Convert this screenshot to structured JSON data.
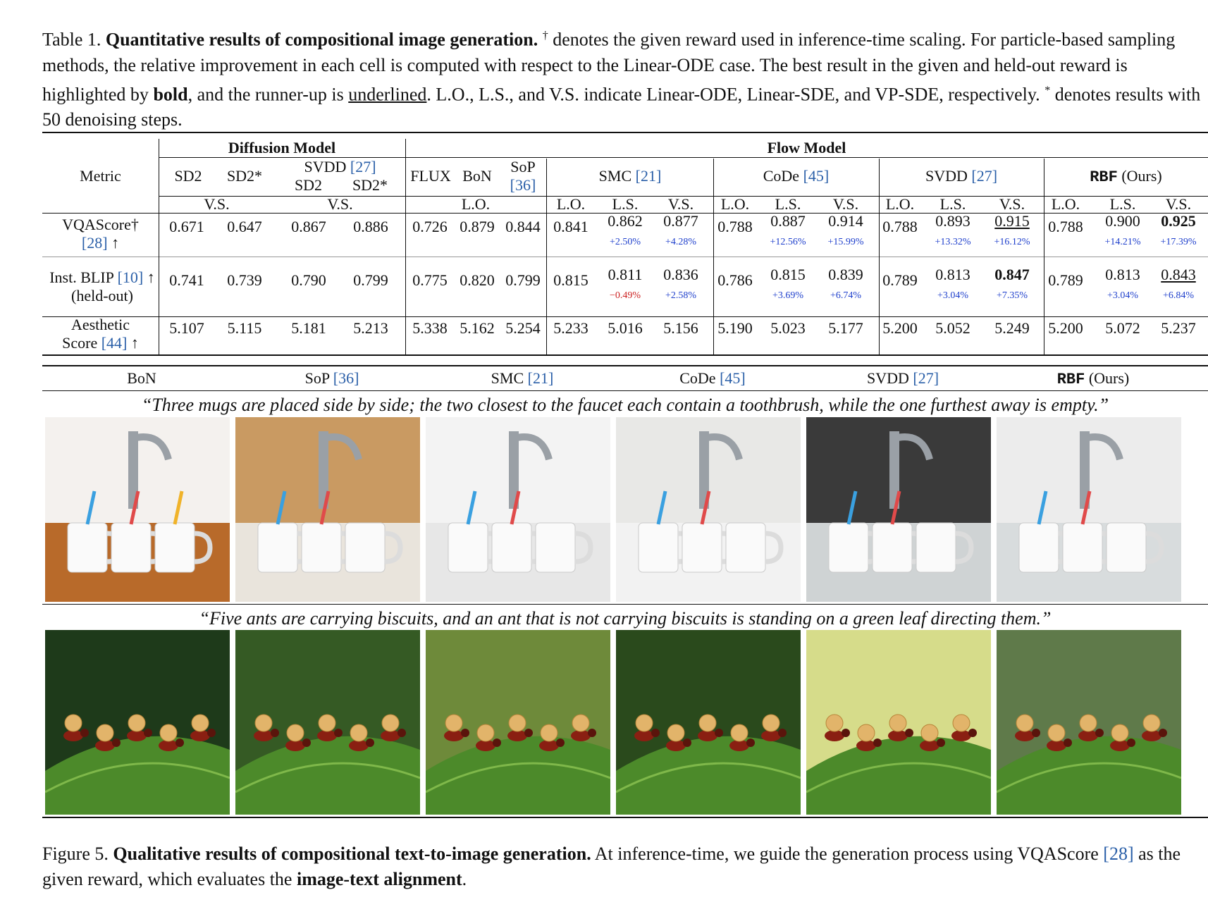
{
  "table_caption": {
    "label": "Table 1.",
    "title": "Quantitative results of compositional image generation.",
    "body_1": "denotes the given reward used in inference-time scaling. For particle-based sampling methods, the relative improvement in each cell is computed with respect to the Linear-ODE case. The best result in the given and held-out reward is highlighted by",
    "bold_word": "bold",
    "body_2": ", and the runner-up is",
    "underlined_word": "underlined",
    "body_3": ". L.O., L.S., and V.S. indicate Linear-ODE, Linear-SDE, and VP-SDE, respectively.",
    "body_4": "denotes results with 50 denoising steps."
  },
  "table": {
    "metric_header": "Metric",
    "group_diffusion": "Diffusion Model",
    "group_flow": "Flow Model",
    "sd2": "SD2",
    "sd2_star": "SD2*",
    "svdd": "SVDD",
    "cite_27": "[27]",
    "flux": "FLUX",
    "bon": "BoN",
    "sop": "SoP",
    "cite_36": "[36]",
    "smc": "SMC",
    "cite_21": "[21]",
    "code": "CoDe",
    "cite_45": "[45]",
    "rbf": "RBF",
    "ours": "(Ours)",
    "vs": "V.S.",
    "lo": "L.O.",
    "ls": "L.S.",
    "rows": [
      {
        "metric_line1": "VQAScore†",
        "metric_line2_cite": "[28]",
        "metric_line2_rest": " ↑",
        "values": [
          "0.671",
          "0.647",
          "0.867",
          "0.886",
          "0.726",
          "0.879",
          "0.844",
          "0.841",
          "0.862",
          "0.877",
          "0.788",
          "0.887",
          "0.914",
          "0.788",
          "0.893",
          "0.915",
          "0.788",
          "0.900",
          "0.925"
        ],
        "improvements": [
          "",
          "",
          "",
          "",
          "",
          "",
          "",
          "",
          "+2.50%",
          "+4.28%",
          "",
          "+12.56%",
          "+15.99%",
          "",
          "+13.32%",
          "+16.12%",
          "",
          "+14.21%",
          "+17.39%"
        ]
      },
      {
        "metric_line1_pre": "Inst. BLIP ",
        "metric_line1_cite": "[10]",
        "metric_line1_post": " ↑",
        "metric_line2": "(held-out)",
        "values": [
          "0.741",
          "0.739",
          "0.790",
          "0.799",
          "0.775",
          "0.820",
          "0.799",
          "0.815",
          "0.811",
          "0.836",
          "0.786",
          "0.815",
          "0.839",
          "0.789",
          "0.813",
          "0.847",
          "0.789",
          "0.813",
          "0.843"
        ],
        "improvements": [
          "",
          "",
          "",
          "",
          "",
          "",
          "",
          "",
          "−0.49%",
          "+2.58%",
          "",
          "+3.69%",
          "+6.74%",
          "",
          "+3.04%",
          "+7.35%",
          "",
          "+3.04%",
          "+6.84%"
        ]
      },
      {
        "metric_line1": "Aesthetic",
        "metric_line2_pre": "Score ",
        "metric_line2_cite": "[44]",
        "metric_line2_rest": " ↑",
        "values": [
          "5.107",
          "5.115",
          "5.181",
          "5.213",
          "5.338",
          "5.162",
          "5.254",
          "5.233",
          "5.016",
          "5.156",
          "5.190",
          "5.023",
          "5.177",
          "5.200",
          "5.052",
          "5.249",
          "5.200",
          "5.072",
          "5.237"
        ]
      }
    ]
  },
  "figure": {
    "method_labels": [
      {
        "name": "BoN",
        "cite": ""
      },
      {
        "name": "SoP ",
        "cite": "[36]"
      },
      {
        "name": "SMC ",
        "cite": "[21]"
      },
      {
        "name": "CoDe ",
        "cite": "[45]"
      },
      {
        "name": "SVDD ",
        "cite": "[27]"
      },
      {
        "name": "RBF",
        "cite": "",
        "suffix": " (Ours)"
      }
    ],
    "prompt_1": "“Three mugs are placed side by side; the two closest to the faucet each contain a toothbrush, while the one furthest away is empty.”",
    "prompt_2": "“Five ants are carrying biscuits, and an ant that is not carrying biscuits is standing on a green leaf directing them.”"
  },
  "figure_caption": {
    "label": "Figure 5.",
    "title": "Qualitative results of compositional text-to-image generation.",
    "body_1": "At inference-time, we guide the generation process using VQAScore",
    "cite": "[28]",
    "body_2": "as the given reward, which evaluates the",
    "bold_end": "image-text alignment",
    "end": "."
  }
}
